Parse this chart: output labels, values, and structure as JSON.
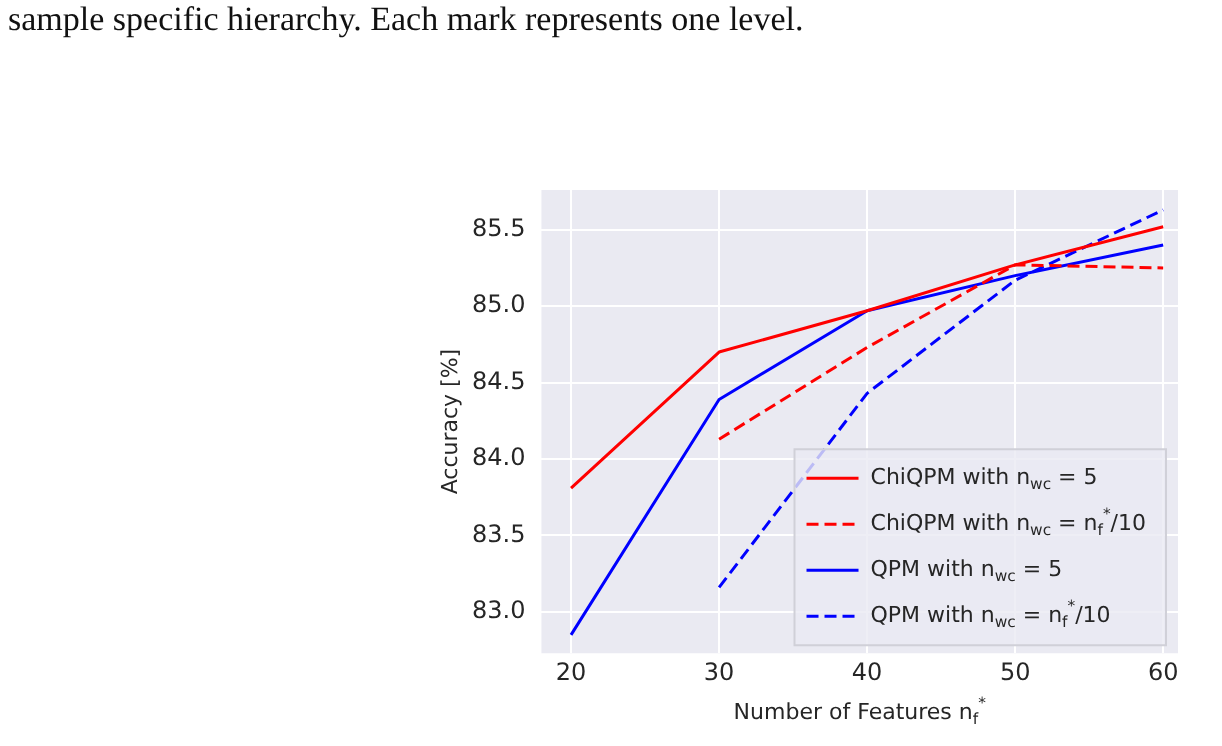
{
  "chart_data": {
    "type": "line",
    "xlabel": "Number of Features n$_{f}$$^{*}$",
    "ylabel": "Accuracy [%]",
    "annotations": [
      "sample specific hierarchy. Each mark represents one level."
    ],
    "x": [
      20,
      30,
      40,
      50,
      60
    ],
    "series": [
      {
        "name": "ChiQPM with n$_{wc}$ = 5",
        "color": "#ff0000",
        "line_style": "solid",
        "values": [
          83.81,
          84.7,
          84.97,
          85.27,
          85.52
        ]
      },
      {
        "name": "ChiQPM with n$_{wc}$ = n$_{f}$$^{*}$/10",
        "color": "#ff0000",
        "line_style": "dashed",
        "values": [
          null,
          84.13,
          84.73,
          85.27,
          85.25
        ]
      },
      {
        "name": "QPM with n$_{wc}$ = 5",
        "color": "#0000ff",
        "line_style": "solid",
        "values": [
          82.85,
          84.39,
          84.97,
          85.2,
          85.4
        ]
      },
      {
        "name": "QPM with n$_{wc}$ = n$_{f}$$^{*}$/10",
        "color": "#0000ff",
        "line_style": "dashed",
        "values": [
          null,
          83.16,
          84.43,
          85.17,
          85.63
        ]
      }
    ],
    "xlim": [
      18,
      61
    ],
    "ylim": [
      82.73,
      85.76
    ],
    "xticks": [
      20,
      30,
      40,
      50,
      60
    ],
    "yticks": [
      {
        "value": 83,
        "label": "83.0"
      },
      83.5,
      {
        "value": 84,
        "label": "84.0"
      },
      84.5,
      {
        "value": 85,
        "label": "85.0"
      },
      85.5
    ],
    "grid": true,
    "legend": "bottom right",
    "marker": "none"
  }
}
